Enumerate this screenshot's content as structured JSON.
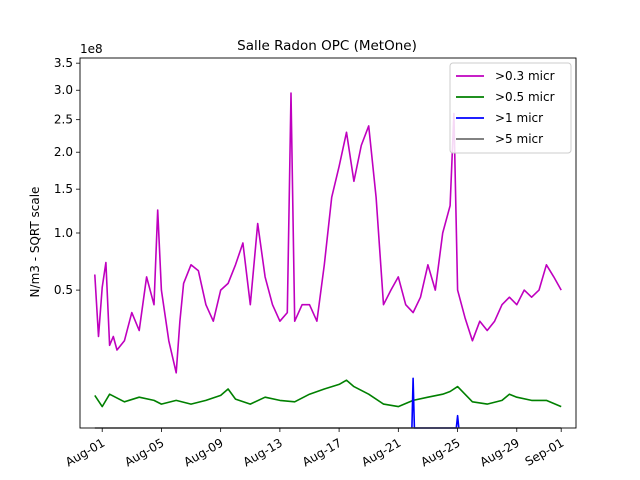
{
  "chart_data": {
    "type": "line",
    "title": "Salle Radon OPC (MetOne)",
    "ylabel": "N/m3 - SQRT scale",
    "xlabel": "",
    "y_scale": "sqrt",
    "y_offset_text": "1e8",
    "ylim": [
      0,
      3.6
    ],
    "xlim": [
      "2024-07-30T12:00",
      "2024-09-02T00:00"
    ],
    "x_ticks": [
      {
        "label": "Aug-01",
        "date": "2024-08-01"
      },
      {
        "label": "Aug-05",
        "date": "2024-08-05"
      },
      {
        "label": "Aug-09",
        "date": "2024-08-09"
      },
      {
        "label": "Aug-13",
        "date": "2024-08-13"
      },
      {
        "label": "Aug-17",
        "date": "2024-08-17"
      },
      {
        "label": "Aug-21",
        "date": "2024-08-21"
      },
      {
        "label": "Aug-25",
        "date": "2024-08-25"
      },
      {
        "label": "Aug-29",
        "date": "2024-08-29"
      },
      {
        "label": "Sep-01",
        "date": "2024-09-01"
      }
    ],
    "y_ticks": [
      {
        "label": "0.5",
        "value": 0.5
      },
      {
        "label": "1.0",
        "value": 1.0
      },
      {
        "label": "1.5",
        "value": 1.5
      },
      {
        "label": "2.0",
        "value": 2.0
      },
      {
        "label": "2.5",
        "value": 2.5
      },
      {
        "label": "3.0",
        "value": 3.0
      },
      {
        "label": "3.5",
        "value": 3.5
      }
    ],
    "legend_position": "top-right",
    "series": [
      {
        "name": ">0.3 micr",
        "color": "#bf00bf",
        "x": [
          "2024-07-31T12:00",
          "2024-07-31T18:00",
          "2024-08-01T00:00",
          "2024-08-01T06:00",
          "2024-08-01T12:00",
          "2024-08-01T18:00",
          "2024-08-02T00:00",
          "2024-08-02T12:00",
          "2024-08-03T00:00",
          "2024-08-03T12:00",
          "2024-08-04T00:00",
          "2024-08-04T12:00",
          "2024-08-04T18:00",
          "2024-08-05T00:00",
          "2024-08-05T12:00",
          "2024-08-06T00:00",
          "2024-08-06T06:00",
          "2024-08-06T12:00",
          "2024-08-07T00:00",
          "2024-08-07T12:00",
          "2024-08-08T00:00",
          "2024-08-08T12:00",
          "2024-08-09T00:00",
          "2024-08-09T12:00",
          "2024-08-10T00:00",
          "2024-08-10T12:00",
          "2024-08-11T00:00",
          "2024-08-11T12:00",
          "2024-08-12T00:00",
          "2024-08-12T12:00",
          "2024-08-13T00:00",
          "2024-08-13T12:00",
          "2024-08-13T18:00",
          "2024-08-14T00:00",
          "2024-08-14T12:00",
          "2024-08-15T00:00",
          "2024-08-15T12:00",
          "2024-08-16T00:00",
          "2024-08-16T12:00",
          "2024-08-17T00:00",
          "2024-08-17T12:00",
          "2024-08-18T00:00",
          "2024-08-18T12:00",
          "2024-08-19T00:00",
          "2024-08-19T12:00",
          "2024-08-20T00:00",
          "2024-08-20T12:00",
          "2024-08-21T00:00",
          "2024-08-21T12:00",
          "2024-08-22T00:00",
          "2024-08-22T12:00",
          "2024-08-23T00:00",
          "2024-08-23T12:00",
          "2024-08-24T00:00",
          "2024-08-24T12:00",
          "2024-08-24T18:00",
          "2024-08-25T00:00",
          "2024-08-25T12:00",
          "2024-08-26T00:00",
          "2024-08-26T12:00",
          "2024-08-27T00:00",
          "2024-08-27T12:00",
          "2024-08-28T00:00",
          "2024-08-28T12:00",
          "2024-08-29T00:00",
          "2024-08-29T12:00",
          "2024-08-30T00:00",
          "2024-08-30T12:00",
          "2024-08-31T00:00",
          "2024-08-31T12:00",
          "2024-09-01T00:00"
        ],
        "values": [
          0.62,
          0.22,
          0.52,
          0.72,
          0.18,
          0.22,
          0.16,
          0.2,
          0.35,
          0.25,
          0.6,
          0.4,
          1.25,
          0.5,
          0.2,
          0.08,
          0.3,
          0.55,
          0.7,
          0.65,
          0.4,
          0.3,
          0.5,
          0.55,
          0.7,
          0.9,
          0.4,
          1.1,
          0.6,
          0.4,
          0.3,
          0.35,
          2.95,
          0.3,
          0.4,
          0.4,
          0.3,
          0.7,
          1.4,
          1.8,
          2.3,
          1.6,
          2.1,
          2.4,
          1.4,
          0.4,
          0.5,
          0.6,
          0.4,
          0.35,
          0.45,
          0.7,
          0.5,
          1.0,
          1.3,
          2.6,
          0.5,
          0.32,
          0.2,
          0.3,
          0.25,
          0.3,
          0.4,
          0.45,
          0.4,
          0.5,
          0.45,
          0.5,
          0.7,
          0.6,
          0.5
        ]
      },
      {
        "name": ">0.5 micr",
        "color": "#008000",
        "x": [
          "2024-07-31T12:00",
          "2024-08-01T00:00",
          "2024-08-01T12:00",
          "2024-08-02T12:00",
          "2024-08-03T12:00",
          "2024-08-04T12:00",
          "2024-08-05T00:00",
          "2024-08-06T00:00",
          "2024-08-07T00:00",
          "2024-08-08T00:00",
          "2024-08-09T00:00",
          "2024-08-09T12:00",
          "2024-08-10T00:00",
          "2024-08-11T00:00",
          "2024-08-12T00:00",
          "2024-08-13T00:00",
          "2024-08-14T00:00",
          "2024-08-15T00:00",
          "2024-08-16T00:00",
          "2024-08-17T00:00",
          "2024-08-17T12:00",
          "2024-08-18T00:00",
          "2024-08-19T00:00",
          "2024-08-20T00:00",
          "2024-08-21T00:00",
          "2024-08-22T00:00",
          "2024-08-23T00:00",
          "2024-08-24T00:00",
          "2024-08-24T12:00",
          "2024-08-25T00:00",
          "2024-08-26T00:00",
          "2024-08-27T00:00",
          "2024-08-28T00:00",
          "2024-08-28T12:00",
          "2024-08-29T00:00",
          "2024-08-30T00:00",
          "2024-08-31T00:00",
          "2024-09-01T00:00"
        ],
        "values": [
          0.028,
          0.012,
          0.03,
          0.018,
          0.025,
          0.02,
          0.015,
          0.02,
          0.015,
          0.02,
          0.028,
          0.04,
          0.022,
          0.015,
          0.025,
          0.02,
          0.018,
          0.03,
          0.04,
          0.05,
          0.06,
          0.045,
          0.03,
          0.015,
          0.012,
          0.02,
          0.025,
          0.03,
          0.035,
          0.045,
          0.018,
          0.015,
          0.02,
          0.03,
          0.025,
          0.02,
          0.02,
          0.012
        ]
      },
      {
        "name": ">1 micr",
        "color": "#0000ff",
        "x": [
          "2024-08-21T22:00",
          "2024-08-22T00:00",
          "2024-08-22T02:00",
          "2024-08-24T22:00",
          "2024-08-25T00:00",
          "2024-08-25T02:00"
        ],
        "values": [
          0.0,
          0.065,
          0.0,
          0.0,
          0.004,
          0.0
        ]
      },
      {
        "name": ">5 micr",
        "color": "#707070",
        "x": [
          "2024-07-31T12:00",
          "2024-09-01T00:00"
        ],
        "values": [
          0.0,
          0.0
        ]
      }
    ]
  }
}
